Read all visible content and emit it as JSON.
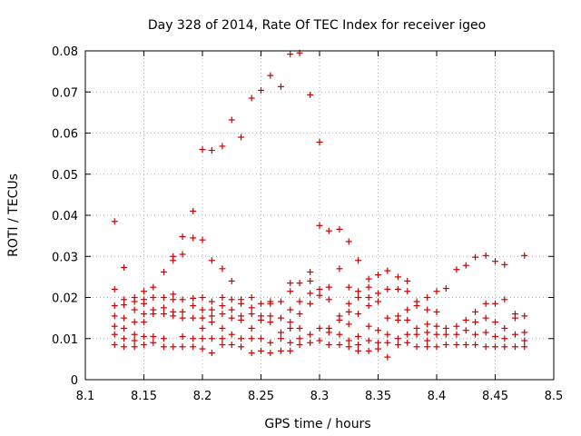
{
  "chart_data": {
    "type": "scatter",
    "title": "Day 328 of 2014, Rate Of TEC Index for receiver igeo",
    "xlabel": "GPS time / hours",
    "ylabel": "ROTI / TECUs",
    "xlim": [
      8.1,
      8.5
    ],
    "ylim": [
      0,
      0.08
    ],
    "xticks": [
      "8.1",
      "8.15",
      "8.2",
      "8.25",
      "8.3",
      "8.35",
      "8.4",
      "8.45",
      "8.5"
    ],
    "yticks": [
      "0",
      "0.01",
      "0.02",
      "0.03",
      "0.04",
      "0.05",
      "0.06",
      "0.07",
      "0.08"
    ],
    "grid": true,
    "marker": "+",
    "color": "#cc0000",
    "series": [
      {
        "name": "ROTI",
        "points": [
          [
            8.125,
            0.0385
          ],
          [
            8.125,
            0.022
          ],
          [
            8.125,
            0.018
          ],
          [
            8.125,
            0.0155
          ],
          [
            8.125,
            0.013
          ],
          [
            8.125,
            0.011
          ],
          [
            8.125,
            0.0085
          ],
          [
            8.133,
            0.0273
          ],
          [
            8.133,
            0.0195
          ],
          [
            8.133,
            0.0182
          ],
          [
            8.133,
            0.015
          ],
          [
            8.133,
            0.0125
          ],
          [
            8.133,
            0.01
          ],
          [
            8.133,
            0.008
          ],
          [
            8.142,
            0.02
          ],
          [
            8.142,
            0.019
          ],
          [
            8.142,
            0.017
          ],
          [
            8.142,
            0.014
          ],
          [
            8.142,
            0.011
          ],
          [
            8.142,
            0.0095
          ],
          [
            8.142,
            0.008
          ],
          [
            8.15,
            0.0215
          ],
          [
            8.15,
            0.0195
          ],
          [
            8.15,
            0.0185
          ],
          [
            8.15,
            0.016
          ],
          [
            8.15,
            0.014
          ],
          [
            8.15,
            0.0105
          ],
          [
            8.15,
            0.0085
          ],
          [
            8.158,
            0.0225
          ],
          [
            8.158,
            0.02
          ],
          [
            8.158,
            0.017
          ],
          [
            8.158,
            0.016
          ],
          [
            8.158,
            0.0105
          ],
          [
            8.158,
            0.009
          ],
          [
            8.167,
            0.0262
          ],
          [
            8.167,
            0.02
          ],
          [
            8.167,
            0.0175
          ],
          [
            8.167,
            0.016
          ],
          [
            8.167,
            0.01
          ],
          [
            8.167,
            0.008
          ],
          [
            8.175,
            0.03
          ],
          [
            8.175,
            0.029
          ],
          [
            8.175,
            0.0208
          ],
          [
            8.175,
            0.0195
          ],
          [
            8.175,
            0.0165
          ],
          [
            8.175,
            0.0155
          ],
          [
            8.175,
            0.008
          ],
          [
            8.183,
            0.0348
          ],
          [
            8.183,
            0.0305
          ],
          [
            8.183,
            0.0195
          ],
          [
            8.183,
            0.0165
          ],
          [
            8.183,
            0.015
          ],
          [
            8.183,
            0.0105
          ],
          [
            8.183,
            0.008
          ],
          [
            8.192,
            0.041
          ],
          [
            8.192,
            0.0345
          ],
          [
            8.192,
            0.0198
          ],
          [
            8.192,
            0.018
          ],
          [
            8.192,
            0.015
          ],
          [
            8.192,
            0.01
          ],
          [
            8.192,
            0.008
          ],
          [
            8.2,
            0.056
          ],
          [
            8.2,
            0.034
          ],
          [
            8.2,
            0.02
          ],
          [
            8.2,
            0.017
          ],
          [
            8.2,
            0.015
          ],
          [
            8.2,
            0.0125
          ],
          [
            8.2,
            0.01
          ],
          [
            8.2,
            0.0075
          ],
          [
            8.208,
            0.0558
          ],
          [
            8.208,
            0.029
          ],
          [
            8.208,
            0.019
          ],
          [
            8.208,
            0.017
          ],
          [
            8.208,
            0.0155
          ],
          [
            8.208,
            0.014
          ],
          [
            8.208,
            0.01
          ],
          [
            8.208,
            0.0065
          ],
          [
            8.217,
            0.0568
          ],
          [
            8.217,
            0.027
          ],
          [
            8.217,
            0.02
          ],
          [
            8.217,
            0.018
          ],
          [
            8.217,
            0.016
          ],
          [
            8.217,
            0.0125
          ],
          [
            8.217,
            0.01
          ],
          [
            8.217,
            0.0085
          ],
          [
            8.225,
            0.0632
          ],
          [
            8.225,
            0.024
          ],
          [
            8.225,
            0.0195
          ],
          [
            8.225,
            0.017
          ],
          [
            8.225,
            0.015
          ],
          [
            8.225,
            0.011
          ],
          [
            8.225,
            0.0085
          ],
          [
            8.233,
            0.059
          ],
          [
            8.233,
            0.0195
          ],
          [
            8.233,
            0.0185
          ],
          [
            8.233,
            0.0155
          ],
          [
            8.233,
            0.0145
          ],
          [
            8.233,
            0.01
          ],
          [
            8.233,
            0.008
          ],
          [
            8.242,
            0.0685
          ],
          [
            8.242,
            0.02
          ],
          [
            8.242,
            0.0175
          ],
          [
            8.242,
            0.016
          ],
          [
            8.242,
            0.0125
          ],
          [
            8.242,
            0.01
          ],
          [
            8.242,
            0.0065
          ],
          [
            8.25,
            0.0704
          ],
          [
            8.25,
            0.0185
          ],
          [
            8.25,
            0.0155
          ],
          [
            8.25,
            0.0145
          ],
          [
            8.25,
            0.01
          ],
          [
            8.25,
            0.007
          ],
          [
            8.258,
            0.074
          ],
          [
            8.258,
            0.019
          ],
          [
            8.258,
            0.0185
          ],
          [
            8.258,
            0.0155
          ],
          [
            8.258,
            0.014
          ],
          [
            8.258,
            0.009
          ],
          [
            8.258,
            0.0065
          ],
          [
            8.267,
            0.0713
          ],
          [
            8.267,
            0.019
          ],
          [
            8.267,
            0.015
          ],
          [
            8.267,
            0.0115
          ],
          [
            8.267,
            0.01
          ],
          [
            8.267,
            0.007
          ],
          [
            8.275,
            0.0792
          ],
          [
            8.275,
            0.0235
          ],
          [
            8.275,
            0.0215
          ],
          [
            8.275,
            0.017
          ],
          [
            8.275,
            0.014
          ],
          [
            8.275,
            0.0125
          ],
          [
            8.275,
            0.009
          ],
          [
            8.275,
            0.007
          ],
          [
            8.283,
            0.0795
          ],
          [
            8.283,
            0.0235
          ],
          [
            8.283,
            0.019
          ],
          [
            8.283,
            0.016
          ],
          [
            8.283,
            0.0125
          ],
          [
            8.283,
            0.01
          ],
          [
            8.283,
            0.0085
          ],
          [
            8.292,
            0.0693
          ],
          [
            8.292,
            0.0262
          ],
          [
            8.292,
            0.024
          ],
          [
            8.292,
            0.021
          ],
          [
            8.292,
            0.0185
          ],
          [
            8.292,
            0.011
          ],
          [
            8.292,
            0.009
          ],
          [
            8.3,
            0.0578
          ],
          [
            8.3,
            0.0375
          ],
          [
            8.3,
            0.022
          ],
          [
            8.3,
            0.0205
          ],
          [
            8.3,
            0.0125
          ],
          [
            8.3,
            0.0095
          ],
          [
            8.308,
            0.0362
          ],
          [
            8.308,
            0.0225
          ],
          [
            8.308,
            0.0195
          ],
          [
            8.308,
            0.0125
          ],
          [
            8.308,
            0.0115
          ],
          [
            8.308,
            0.0085
          ],
          [
            8.317,
            0.0366
          ],
          [
            8.317,
            0.027
          ],
          [
            8.317,
            0.0155
          ],
          [
            8.317,
            0.0145
          ],
          [
            8.317,
            0.011
          ],
          [
            8.317,
            0.0085
          ],
          [
            8.325,
            0.0336
          ],
          [
            8.325,
            0.0225
          ],
          [
            8.325,
            0.0185
          ],
          [
            8.325,
            0.0165
          ],
          [
            8.325,
            0.0135
          ],
          [
            8.325,
            0.0095
          ],
          [
            8.325,
            0.008
          ],
          [
            8.333,
            0.029
          ],
          [
            8.333,
            0.0215
          ],
          [
            8.333,
            0.02
          ],
          [
            8.333,
            0.016
          ],
          [
            8.333,
            0.0105
          ],
          [
            8.333,
            0.0085
          ],
          [
            8.333,
            0.007
          ],
          [
            8.342,
            0.0245
          ],
          [
            8.342,
            0.0225
          ],
          [
            8.342,
            0.02
          ],
          [
            8.342,
            0.018
          ],
          [
            8.342,
            0.013
          ],
          [
            8.342,
            0.0095
          ],
          [
            8.342,
            0.007
          ],
          [
            8.35,
            0.0255
          ],
          [
            8.35,
            0.021
          ],
          [
            8.35,
            0.019
          ],
          [
            8.35,
            0.012
          ],
          [
            8.35,
            0.009
          ],
          [
            8.35,
            0.0075
          ],
          [
            8.358,
            0.0265
          ],
          [
            8.358,
            0.022
          ],
          [
            8.358,
            0.015
          ],
          [
            8.358,
            0.011
          ],
          [
            8.358,
            0.009
          ],
          [
            8.358,
            0.0055
          ],
          [
            8.367,
            0.025
          ],
          [
            8.367,
            0.022
          ],
          [
            8.367,
            0.0155
          ],
          [
            8.367,
            0.0145
          ],
          [
            8.367,
            0.01
          ],
          [
            8.367,
            0.0085
          ],
          [
            8.375,
            0.024
          ],
          [
            8.375,
            0.0215
          ],
          [
            8.375,
            0.017
          ],
          [
            8.375,
            0.0145
          ],
          [
            8.375,
            0.011
          ],
          [
            8.375,
            0.009
          ],
          [
            8.383,
            0.019
          ],
          [
            8.383,
            0.018
          ],
          [
            8.383,
            0.0125
          ],
          [
            8.383,
            0.011
          ],
          [
            8.383,
            0.008
          ],
          [
            8.392,
            0.02
          ],
          [
            8.392,
            0.017
          ],
          [
            8.392,
            0.0135
          ],
          [
            8.392,
            0.0115
          ],
          [
            8.392,
            0.0095
          ],
          [
            8.392,
            0.008
          ],
          [
            8.4,
            0.0215
          ],
          [
            8.4,
            0.0165
          ],
          [
            8.4,
            0.013
          ],
          [
            8.4,
            0.011
          ],
          [
            8.4,
            0.008
          ],
          [
            8.408,
            0.0222
          ],
          [
            8.408,
            0.0125
          ],
          [
            8.408,
            0.011
          ],
          [
            8.408,
            0.0085
          ],
          [
            8.417,
            0.0268
          ],
          [
            8.417,
            0.013
          ],
          [
            8.417,
            0.011
          ],
          [
            8.417,
            0.0085
          ],
          [
            8.425,
            0.0278
          ],
          [
            8.425,
            0.0145
          ],
          [
            8.425,
            0.012
          ],
          [
            8.425,
            0.0085
          ],
          [
            8.433,
            0.0298
          ],
          [
            8.433,
            0.0165
          ],
          [
            8.433,
            0.014
          ],
          [
            8.433,
            0.011
          ],
          [
            8.433,
            0.0085
          ],
          [
            8.442,
            0.0302
          ],
          [
            8.442,
            0.0185
          ],
          [
            8.442,
            0.015
          ],
          [
            8.442,
            0.0115
          ],
          [
            8.442,
            0.008
          ],
          [
            8.45,
            0.0288
          ],
          [
            8.45,
            0.0185
          ],
          [
            8.45,
            0.014
          ],
          [
            8.45,
            0.0105
          ],
          [
            8.45,
            0.008
          ],
          [
            8.458,
            0.028
          ],
          [
            8.458,
            0.0195
          ],
          [
            8.458,
            0.0125
          ],
          [
            8.458,
            0.01
          ],
          [
            8.458,
            0.008
          ],
          [
            8.467,
            0.016
          ],
          [
            8.467,
            0.015
          ],
          [
            8.467,
            0.011
          ],
          [
            8.467,
            0.008
          ],
          [
            8.475,
            0.0302
          ],
          [
            8.475,
            0.0155
          ],
          [
            8.475,
            0.0115
          ],
          [
            8.475,
            0.0095
          ],
          [
            8.475,
            0.008
          ]
        ]
      }
    ]
  }
}
